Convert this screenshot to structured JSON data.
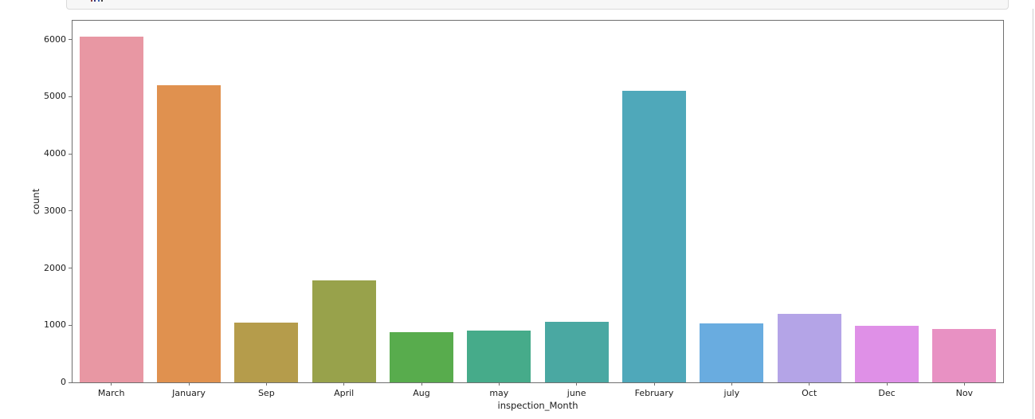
{
  "notebook": {
    "top_cell": {
      "note": "clipped bottom edge of a code cell, text cut off by viewport",
      "fragment_colors": [
        "#8c3a3a",
        "#35357f",
        "#3c64b4",
        "#444444"
      ]
    }
  },
  "chart_data": {
    "type": "bar",
    "title": "",
    "xlabel": "inspection_Month",
    "ylabel": "count",
    "categories": [
      "March",
      "January",
      "Sep",
      "April",
      "Aug",
      "may",
      "june",
      "February",
      "july",
      "Oct",
      "Dec",
      "Nov"
    ],
    "values": [
      6050,
      5200,
      1050,
      1790,
      880,
      910,
      1060,
      5110,
      1030,
      1200,
      990,
      935
    ],
    "bar_colors": [
      "#e897a3",
      "#e0914f",
      "#b59c4b",
      "#98a24b",
      "#58ac4d",
      "#46ab8a",
      "#4aa8a2",
      "#4fa8ba",
      "#69ace0",
      "#b4a4e7",
      "#df90e7",
      "#e891c3"
    ],
    "ylim": [
      0,
      6330
    ],
    "yticks": [
      0,
      1000,
      2000,
      3000,
      4000,
      5000,
      6000
    ],
    "grid": false,
    "legend": null,
    "axes_style": {
      "spine_color": "#6f6f6f",
      "text_color": "#1c1c1c",
      "background": "#ffffff"
    }
  }
}
